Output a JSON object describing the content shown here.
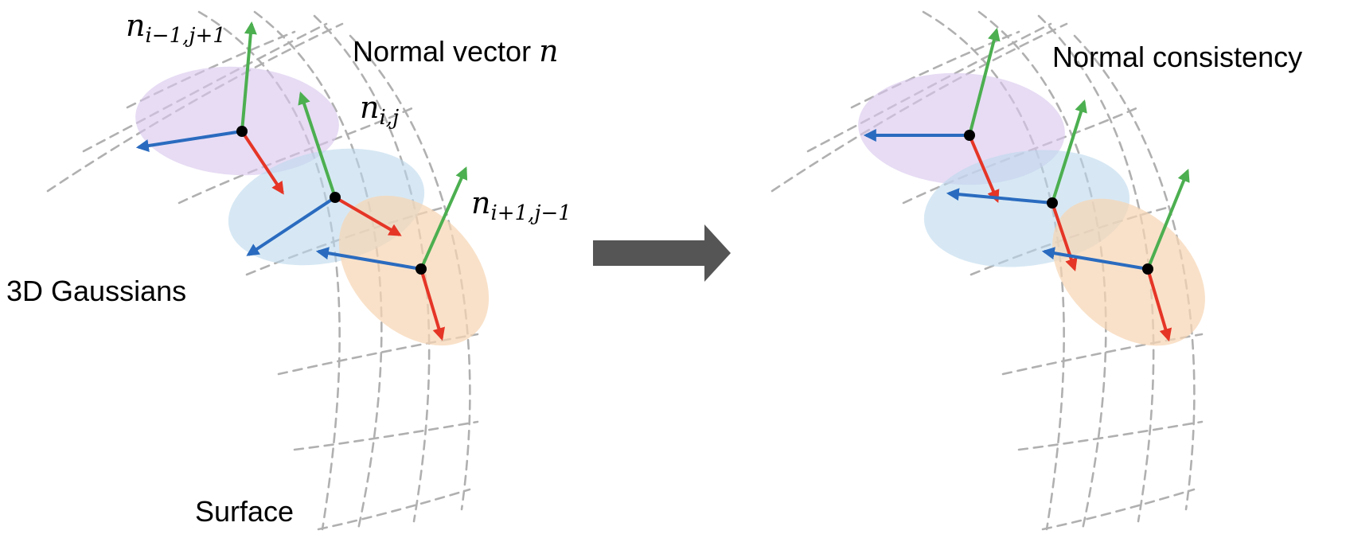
{
  "left_panel": {
    "title_prefix": "Normal vector",
    "title_var": "n",
    "label_gaussians": "3D Gaussians",
    "label_surface": "Surface",
    "normal_labels": [
      {
        "base": "n",
        "sub": "i−1,j+1"
      },
      {
        "base": "n",
        "sub": "i,j"
      },
      {
        "base": "n",
        "sub": "i+1,j−1"
      }
    ]
  },
  "right_panel": {
    "title": "Normal consistency"
  },
  "colors": {
    "normal_vector": "#4caf50",
    "tangent_red": "#e53526",
    "tangent_blue": "#2a6bbf",
    "gaussian_purple": "#d8c6ee",
    "gaussian_blue": "#bcd8ec",
    "gaussian_orange": "#f6d5b4",
    "mesh": "#b0b0b0",
    "arrow": "#555555"
  }
}
